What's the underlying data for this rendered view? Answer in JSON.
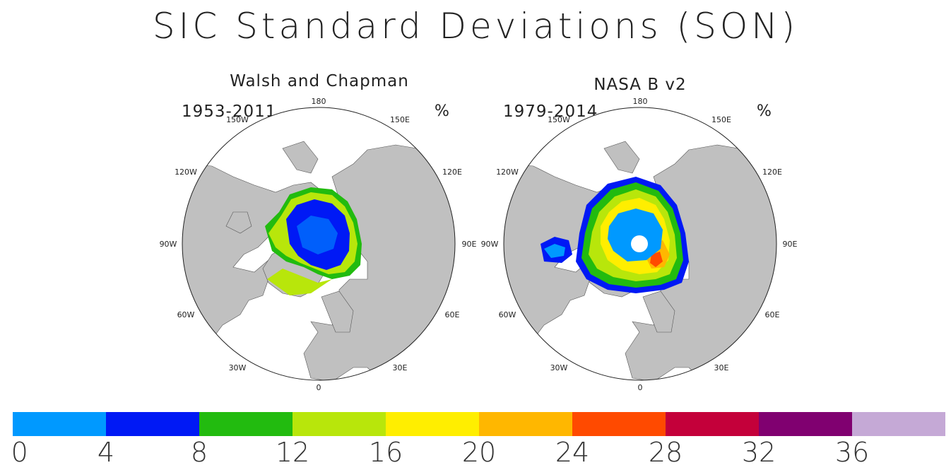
{
  "title": "SIC Standard Deviations (SON)",
  "unit_label": "%",
  "panels": [
    {
      "name": "Walsh and Chapman",
      "period": "1953-2011"
    },
    {
      "name": "NASA B v2",
      "period": "1979-2014"
    }
  ],
  "longitude_labels": {
    "top": "180",
    "upper_left": "150W",
    "upper_right": "150E",
    "left_upper": "120W",
    "right_upper": "120E",
    "left": "90W",
    "right": "90E",
    "left_lower": "60W",
    "right_lower": "60E",
    "lower_left": "30W",
    "lower_right": "30E",
    "bottom": "0"
  },
  "colorbar": {
    "colors": [
      "#0099ff",
      "#0019f5",
      "#22bb0f",
      "#b8e60b",
      "#ffee00",
      "#ffb700",
      "#ff4a00",
      "#c4003a",
      "#800070",
      "#c5a9d6"
    ],
    "ticks": [
      "0",
      "4",
      "8",
      "12",
      "16",
      "20",
      "24",
      "28",
      "32",
      "36"
    ]
  },
  "land_color": "#c0c0c0"
}
